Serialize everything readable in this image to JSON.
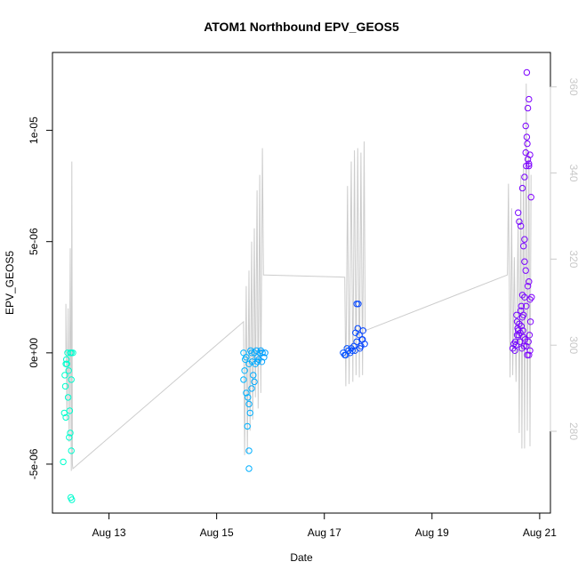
{
  "chart_data": {
    "type": "scatter",
    "title": "ATOM1 Northbound EPV_GEOS5",
    "xlabel": "Date",
    "ylabel": "EPV_GEOS5",
    "x_ticks": [
      "Aug 13",
      "Aug 15",
      "Aug 17",
      "Aug 19",
      "Aug 21"
    ],
    "x_tick_days": [
      13,
      15,
      17,
      19,
      21
    ],
    "xlim": [
      11.95,
      21.2
    ],
    "y_ticks": [
      -5e-06,
      0,
      5e-06,
      1e-05
    ],
    "y_tick_labels": [
      "-5e-06",
      "0e+00",
      "5e-06",
      "1e-05"
    ],
    "ylim": [
      -7.2e-06,
      1.35e-05
    ],
    "y2_ticks": [
      280,
      300,
      320,
      340,
      360
    ],
    "y2_tick_labels": [
      "280",
      "300",
      "320",
      "340",
      "360"
    ],
    "y2lim": [
      261,
      368
    ],
    "y2_color": "#cccccc",
    "line_color": "#cccccc",
    "point_colors": [
      "#00ffcc",
      "#00ccff",
      "#0033ff",
      "#8000ff"
    ],
    "points": [
      [
        12.2,
        -5e-07
      ],
      [
        12.22,
        -5e-07
      ],
      [
        12.28,
        0
      ],
      [
        12.3,
        0
      ],
      [
        12.25,
        -8e-07
      ],
      [
        12.18,
        -1e-06
      ],
      [
        12.3,
        -1.2e-06
      ],
      [
        12.24,
        -2e-06
      ],
      [
        12.27,
        -2.6e-06
      ],
      [
        12.2,
        -2.9e-06
      ],
      [
        12.17,
        -2.7e-06
      ],
      [
        12.28,
        -3.6e-06
      ],
      [
        12.26,
        -3.8e-06
      ],
      [
        12.3,
        -4.4e-06
      ],
      [
        12.15,
        -4.9e-06
      ],
      [
        12.29,
        -6.5e-06
      ],
      [
        12.31,
        -6.6e-06
      ],
      [
        12.21,
        -3e-07
      ],
      [
        12.23,
        0
      ],
      [
        12.33,
        0
      ],
      [
        12.19,
        -1.5e-06
      ],
      [
        15.5,
        0
      ],
      [
        15.55,
        -2e-07
      ],
      [
        15.6,
        -5e-07
      ],
      [
        15.65,
        0
      ],
      [
        15.7,
        0
      ],
      [
        15.75,
        -2e-07
      ],
      [
        15.8,
        0
      ],
      [
        15.85,
        0
      ],
      [
        15.52,
        -8e-07
      ],
      [
        15.5,
        -1.2e-06
      ],
      [
        15.55,
        -1.8e-06
      ],
      [
        15.58,
        -2e-06
      ],
      [
        15.6,
        -2.3e-06
      ],
      [
        15.62,
        -2.7e-06
      ],
      [
        15.57,
        -3.3e-06
      ],
      [
        15.6,
        -4.4e-06
      ],
      [
        15.6,
        -5.2e-06
      ],
      [
        15.68,
        -1e-06
      ],
      [
        15.72,
        -5e-07
      ],
      [
        15.78,
        -3e-07
      ],
      [
        15.82,
        1e-07
      ],
      [
        15.53,
        -3e-07
      ],
      [
        15.63,
        1e-07
      ],
      [
        15.66,
        -4e-07
      ],
      [
        15.74,
        1e-07
      ],
      [
        15.88,
        -2e-07
      ],
      [
        15.9,
        0
      ],
      [
        15.84,
        -4e-07
      ],
      [
        15.7,
        -1.3e-06
      ],
      [
        15.65,
        -1.6e-06
      ],
      [
        15.76,
        -4e-07
      ],
      [
        17.35,
        0
      ],
      [
        17.4,
        -1e-07
      ],
      [
        17.45,
        1e-07
      ],
      [
        17.5,
        2e-07
      ],
      [
        17.55,
        3e-07
      ],
      [
        17.6,
        5e-07
      ],
      [
        17.65,
        8e-07
      ],
      [
        17.7,
        6e-07
      ],
      [
        17.72,
        1e-06
      ],
      [
        17.62,
        1.1e-06
      ],
      [
        17.58,
        9e-07
      ],
      [
        17.6,
        2.2e-06
      ],
      [
        17.63,
        2.2e-06
      ],
      [
        17.68,
        3e-07
      ],
      [
        17.75,
        4e-07
      ],
      [
        17.42,
        2e-07
      ],
      [
        17.48,
        0
      ],
      [
        17.52,
        1e-07
      ],
      [
        17.38,
        -1e-07
      ],
      [
        17.57,
        1e-07
      ],
      [
        17.66,
        2e-07
      ],
      [
        17.71,
        6e-07
      ],
      [
        20.5,
        2e-07
      ],
      [
        20.55,
        5e-07
      ],
      [
        20.58,
        8e-07
      ],
      [
        20.6,
        1e-06
      ],
      [
        20.62,
        1.3e-06
      ],
      [
        20.65,
        1.9e-06
      ],
      [
        20.68,
        1.6e-06
      ],
      [
        20.7,
        1.7e-06
      ],
      [
        20.72,
        2.5e-06
      ],
      [
        20.75,
        2.1e-06
      ],
      [
        20.78,
        3e-06
      ],
      [
        20.8,
        3.2e-06
      ],
      [
        20.82,
        2.4e-06
      ],
      [
        20.6,
        6.3e-06
      ],
      [
        20.62,
        5.9e-06
      ],
      [
        20.65,
        5.7e-06
      ],
      [
        20.7,
        4.8e-06
      ],
      [
        20.72,
        5.1e-06
      ],
      [
        20.75,
        8.4e-06
      ],
      [
        20.78,
        8.7e-06
      ],
      [
        20.8,
        8.5e-06
      ],
      [
        20.82,
        8.9e-06
      ],
      [
        20.76,
        9.7e-06
      ],
      [
        20.74,
        1.02e-05
      ],
      [
        20.78,
        1.1e-05
      ],
      [
        20.8,
        1.14e-05
      ],
      [
        20.76,
        1.26e-05
      ],
      [
        20.68,
        7.4e-06
      ],
      [
        20.72,
        7.9e-06
      ],
      [
        20.74,
        9e-06
      ],
      [
        20.77,
        9.4e-06
      ],
      [
        20.8,
        8.4e-06
      ],
      [
        20.84,
        7e-06
      ],
      [
        20.58,
        1.4e-06
      ],
      [
        20.56,
        3.5e-07
      ],
      [
        20.52,
        4e-07
      ],
      [
        20.54,
        1e-07
      ],
      [
        20.64,
        9e-07
      ],
      [
        20.66,
        1.2e-06
      ],
      [
        20.69,
        1e-06
      ],
      [
        20.73,
        6e-07
      ],
      [
        20.75,
        3e-07
      ],
      [
        20.79,
        5e-07
      ],
      [
        20.81,
        8e-07
      ],
      [
        20.83,
        1.4e-06
      ],
      [
        20.85,
        2.5e-06
      ],
      [
        20.71,
        3e-07
      ],
      [
        20.67,
        2e-07
      ],
      [
        20.63,
        5e-07
      ],
      [
        20.61,
        8e-07
      ],
      [
        20.59,
        1.1e-06
      ],
      [
        20.57,
        1.7e-06
      ],
      [
        20.77,
        -1e-07
      ],
      [
        20.8,
        -1e-07
      ],
      [
        20.82,
        1e-07
      ],
      [
        20.7,
        7e-07
      ],
      [
        20.66,
        2.1e-06
      ],
      [
        20.68,
        2.6e-06
      ],
      [
        20.74,
        3.7e-06
      ],
      [
        20.72,
        4.1e-06
      ]
    ],
    "line": [
      [
        12.2,
        0
      ],
      [
        12.2,
        2.2e-06
      ],
      [
        12.22,
        -3e-06
      ],
      [
        12.24,
        2e-06
      ],
      [
        12.26,
        -4e-06
      ],
      [
        12.28,
        4.7e-06
      ],
      [
        12.3,
        -5.3e-06
      ],
      [
        12.31,
        8.6e-06
      ],
      [
        12.32,
        -5e-06
      ],
      [
        12.33,
        -5.2e-06
      ],
      [
        15.5,
        1.4e-06
      ],
      [
        15.52,
        -4.6e-06
      ],
      [
        15.55,
        3e-06
      ],
      [
        15.57,
        -4.5e-06
      ],
      [
        15.6,
        3.7e-06
      ],
      [
        15.62,
        -3.5e-06
      ],
      [
        15.65,
        5e-06
      ],
      [
        15.67,
        -3e-06
      ],
      [
        15.7,
        5.6e-06
      ],
      [
        15.72,
        -2e-06
      ],
      [
        15.75,
        7.3e-06
      ],
      [
        15.77,
        -2.5e-06
      ],
      [
        15.8,
        8e-06
      ],
      [
        15.82,
        -1.8e-06
      ],
      [
        15.85,
        9.2e-06
      ],
      [
        15.87,
        3.5e-06
      ],
      [
        15.9,
        3.5e-06
      ],
      [
        17.38,
        3.4e-06
      ],
      [
        17.4,
        -1.5e-06
      ],
      [
        17.43,
        7.5e-06
      ],
      [
        17.46,
        -1.4e-06
      ],
      [
        17.5,
        8.6e-06
      ],
      [
        17.53,
        -1.3e-06
      ],
      [
        17.56,
        9.1e-06
      ],
      [
        17.59,
        -1e-06
      ],
      [
        17.62,
        9.2e-06
      ],
      [
        17.65,
        -1.1e-06
      ],
      [
        17.68,
        9e-06
      ],
      [
        17.71,
        -1e-06
      ],
      [
        17.74,
        9.5e-06
      ],
      [
        17.76,
        1e-06
      ],
      [
        20.4,
        3.5e-06
      ],
      [
        20.42,
        7.6e-06
      ],
      [
        20.45,
        -1.1e-06
      ],
      [
        20.48,
        6.5e-06
      ],
      [
        20.5,
        -1e-06
      ],
      [
        20.53,
        4.3e-06
      ],
      [
        20.56,
        -1.3e-06
      ],
      [
        20.6,
        6e-06
      ],
      [
        20.62,
        -3.6e-06
      ],
      [
        20.65,
        8e-06
      ],
      [
        20.67,
        -4.3e-06
      ],
      [
        20.7,
        8.5e-06
      ],
      [
        20.72,
        -4.3e-06
      ],
      [
        20.75,
        1.21e-05
      ],
      [
        20.77,
        -3.5e-06
      ],
      [
        20.8,
        9e-06
      ],
      [
        20.82,
        -4.2e-06
      ],
      [
        20.84,
        8e-06
      ]
    ]
  }
}
